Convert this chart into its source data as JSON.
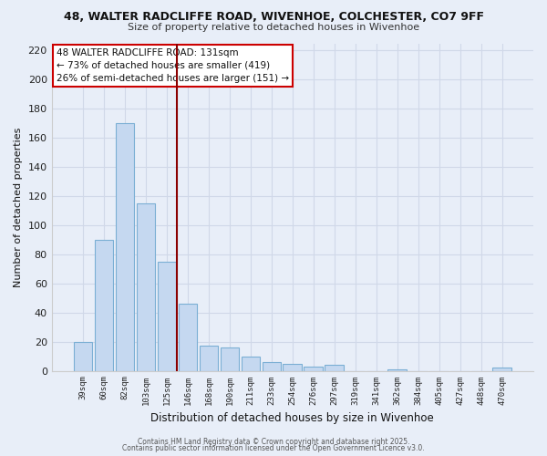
{
  "title_line1": "48, WALTER RADCLIFFE ROAD, WIVENHOE, COLCHESTER, CO7 9FF",
  "title_line2": "Size of property relative to detached houses in Wivenhoe",
  "xlabel": "Distribution of detached houses by size in Wivenhoe",
  "ylabel": "Number of detached properties",
  "bar_labels": [
    "39sqm",
    "60sqm",
    "82sqm",
    "103sqm",
    "125sqm",
    "146sqm",
    "168sqm",
    "190sqm",
    "211sqm",
    "233sqm",
    "254sqm",
    "276sqm",
    "297sqm",
    "319sqm",
    "341sqm",
    "362sqm",
    "384sqm",
    "405sqm",
    "427sqm",
    "448sqm",
    "470sqm"
  ],
  "bar_values": [
    20,
    90,
    170,
    115,
    75,
    46,
    17,
    16,
    10,
    6,
    5,
    3,
    4,
    0,
    0,
    1,
    0,
    0,
    0,
    0,
    2
  ],
  "bar_color": "#c5d8f0",
  "bar_edge_color": "#7bafd4",
  "background_color": "#ffffff",
  "fig_background_color": "#e8eef8",
  "grid_color": "#d0d8e8",
  "vline_x": 4.5,
  "vline_color": "#8b0000",
  "annotation_title": "48 WALTER RADCLIFFE ROAD: 131sqm",
  "annotation_line2": "← 73% of detached houses are smaller (419)",
  "annotation_line3": "26% of semi-detached houses are larger (151) →",
  "annotation_box_color": "#ffffff",
  "annotation_box_edge": "#cc0000",
  "footer_line1": "Contains HM Land Registry data © Crown copyright and database right 2025.",
  "footer_line2": "Contains public sector information licensed under the Open Government Licence v3.0.",
  "ylim": [
    0,
    225
  ],
  "yticks": [
    0,
    20,
    40,
    60,
    80,
    100,
    120,
    140,
    160,
    180,
    200,
    220
  ]
}
